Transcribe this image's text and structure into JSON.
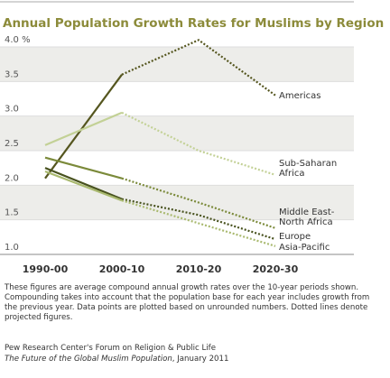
{
  "chart_data": {
    "type": "line",
    "title": "Annual Population Growth Rates for Muslims by Region",
    "categories": [
      "1990-00",
      "2000-10",
      "2010-20",
      "2020-30"
    ],
    "ylim": [
      1,
      4
    ],
    "yticks": [
      {
        "value": 1,
        "label": "1.0"
      },
      1.5,
      {
        "value": 2,
        "label": "2.0"
      },
      2.5,
      {
        "value": 3,
        "label": "3.0"
      },
      3.5,
      {
        "value": 4,
        "label": "4.0 %"
      }
    ],
    "dotted_after": 1,
    "series": [
      {
        "name": "Americas",
        "color": "#55561f",
        "values": [
          2.1,
          3.6,
          4.1,
          3.3
        ]
      },
      {
        "name": "Sub-Saharan Africa",
        "color": "#c3d196",
        "values": [
          2.58,
          3.05,
          2.5,
          2.15
        ]
      },
      {
        "name": "Middle East-North Africa",
        "color": "#7b8a3a",
        "values": [
          2.4,
          2.1,
          1.75,
          1.38
        ]
      },
      {
        "name": "Europe",
        "color": "#48521e",
        "values": [
          2.25,
          1.8,
          1.57,
          1.22
        ]
      },
      {
        "name": "Asia-Pacific",
        "color": "#a9b96f",
        "values": [
          2.2,
          1.78,
          1.45,
          1.12
        ]
      }
    ]
  },
  "notes": "These figures are average compound annual growth rates over the 10-year periods shown. Compounding takes into account that the population base for each year includes growth from the previous year. Data points are plotted based on unrounded numbers. Dotted lines denote projected figures.",
  "source": {
    "line1": "Pew Research Center's Forum on Religion & Public Life",
    "publication": "The Future of the Global Muslim Population",
    "date": ", January 2011"
  }
}
